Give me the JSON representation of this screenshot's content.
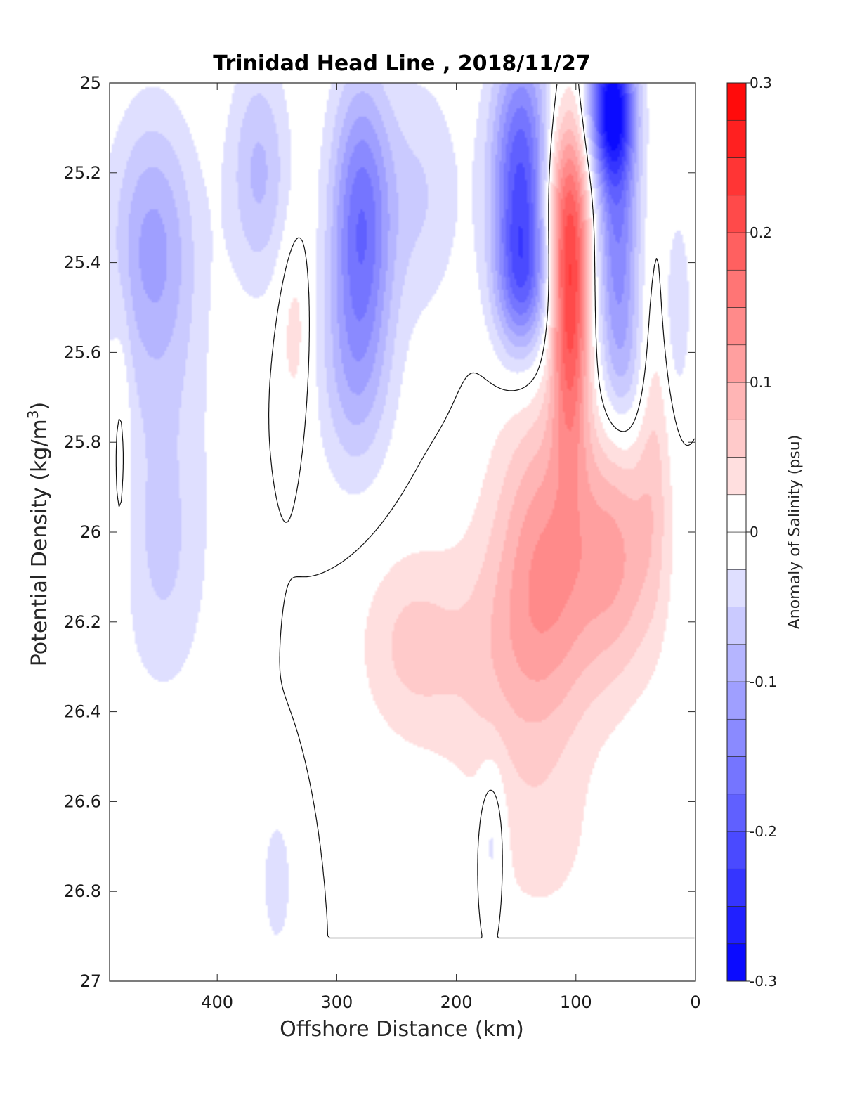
{
  "chart_data": {
    "type": "heatmap",
    "title": "Trinidad Head Line , 2018/11/27",
    "xlabel": "Offshore Distance (km)",
    "ylabel_main": "Potential Density (kg/m",
    "ylabel_sup": "3",
    "ylabel_end": ")",
    "xlim": [
      490,
      0
    ],
    "ylim": [
      25,
      27
    ],
    "x_reversed": true,
    "y_reversed": true,
    "xticks": [
      400,
      300,
      200,
      100,
      0
    ],
    "yticks": [
      25,
      25.2,
      25.4,
      25.6,
      25.8,
      26,
      26.2,
      26.4,
      26.6,
      26.8,
      27
    ],
    "ytick_labels": [
      "25",
      "25.2",
      "25.4",
      "25.6",
      "25.8",
      "26",
      "26.2",
      "26.4",
      "26.6",
      "26.8",
      "27"
    ],
    "data_extent_max_density": 26.9,
    "colorbar": {
      "label": "Anomaly of Salinity (psu)",
      "range": [
        -0.3,
        0.3
      ],
      "levels": 24,
      "ticks": [
        0.3,
        0.2,
        0.1,
        0,
        -0.1,
        -0.2,
        -0.3
      ],
      "tick_labels": [
        "0.3",
        "0.2",
        "0.1",
        "0",
        "-0.1",
        "-0.2",
        "-0.3"
      ],
      "colormap": "blue-white-red",
      "low_color": "#0000ff",
      "mid_color": "#ffffff",
      "high_color": "#ff0000"
    },
    "anomaly_features": [
      {
        "x": 455,
        "y": 25.35,
        "value": -0.09,
        "sx": 25,
        "sy": 0.2
      },
      {
        "x": 445,
        "y": 25.75,
        "value": -0.04,
        "sx": 30,
        "sy": 0.35
      },
      {
        "x": 445,
        "y": 26.1,
        "value": -0.03,
        "sx": 25,
        "sy": 0.2
      },
      {
        "x": 365,
        "y": 25.2,
        "value": -0.08,
        "sx": 18,
        "sy": 0.18
      },
      {
        "x": 280,
        "y": 25.3,
        "value": -0.16,
        "sx": 18,
        "sy": 0.22
      },
      {
        "x": 285,
        "y": 25.65,
        "value": -0.07,
        "sx": 22,
        "sy": 0.18
      },
      {
        "x": 230,
        "y": 25.25,
        "value": -0.05,
        "sx": 25,
        "sy": 0.2
      },
      {
        "x": 145,
        "y": 25.2,
        "value": -0.2,
        "sx": 18,
        "sy": 0.2
      },
      {
        "x": 145,
        "y": 25.45,
        "value": -0.12,
        "sx": 16,
        "sy": 0.12
      },
      {
        "x": 70,
        "y": 25.05,
        "value": -0.28,
        "sx": 13,
        "sy": 0.12
      },
      {
        "x": 65,
        "y": 25.35,
        "value": -0.14,
        "sx": 13,
        "sy": 0.2
      },
      {
        "x": 60,
        "y": 25.65,
        "value": -0.05,
        "sx": 14,
        "sy": 0.12
      },
      {
        "x": 15,
        "y": 25.5,
        "value": -0.05,
        "sx": 8,
        "sy": 0.15
      },
      {
        "x": 350,
        "y": 26.78,
        "value": -0.04,
        "sx": 10,
        "sy": 0.12
      },
      {
        "x": 170,
        "y": 26.68,
        "value": -0.05,
        "sx": 8,
        "sy": 0.12
      },
      {
        "x": 105,
        "y": 25.5,
        "value": 0.2,
        "sx": 11,
        "sy": 0.22
      },
      {
        "x": 110,
        "y": 25.25,
        "value": 0.1,
        "sx": 16,
        "sy": 0.15
      },
      {
        "x": 125,
        "y": 26.05,
        "value": 0.11,
        "sx": 30,
        "sy": 0.25
      },
      {
        "x": 65,
        "y": 26.05,
        "value": 0.09,
        "sx": 25,
        "sy": 0.2
      },
      {
        "x": 160,
        "y": 26.3,
        "value": 0.05,
        "sx": 45,
        "sy": 0.2
      },
      {
        "x": 240,
        "y": 26.25,
        "value": 0.05,
        "sx": 30,
        "sy": 0.15
      },
      {
        "x": 130,
        "y": 26.7,
        "value": 0.03,
        "sx": 35,
        "sy": 0.15
      },
      {
        "x": 335,
        "y": 25.55,
        "value": 0.04,
        "sx": 10,
        "sy": 0.15
      },
      {
        "x": 480,
        "y": 25.8,
        "value": 0.03,
        "sx": 6,
        "sy": 0.25
      },
      {
        "x": 35,
        "y": 25.8,
        "value": 0.04,
        "sx": 10,
        "sy": 0.25
      }
    ]
  }
}
